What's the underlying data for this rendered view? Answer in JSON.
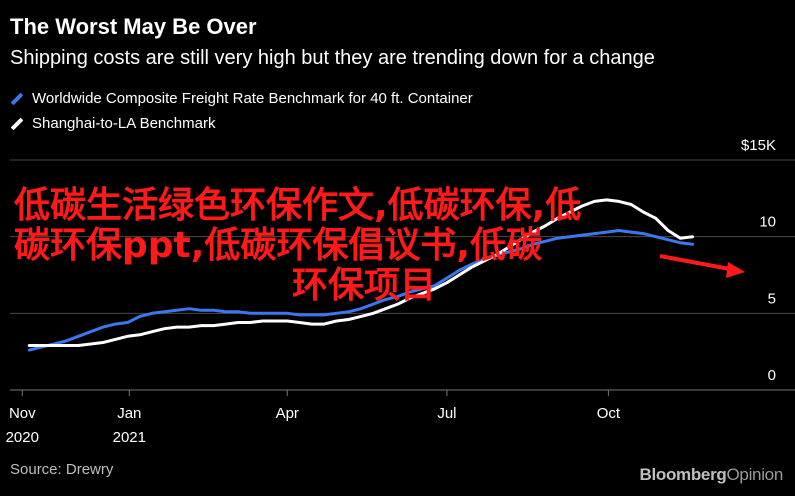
{
  "header": {
    "title": "The Worst May Be Over",
    "subtitle": "Shipping costs are still very high but they are trending down for a change"
  },
  "colors": {
    "background": "#000000",
    "series_worldwide": "#3b78f0",
    "series_shanghai": "#ffffff",
    "grid": "#555555",
    "overlay_text": "#ff1a1a"
  },
  "footer": {
    "source": "Source: Drewry",
    "brand_bold": "Bloomberg",
    "brand_light": "Opinion"
  },
  "overlay": {
    "line1": "低碳生活绿色环保作文,低碳环保,低",
    "line2": "碳环保ppt,低碳环保倡议书,低碳",
    "line3": "环保项目"
  },
  "chart_data": {
    "type": "line",
    "title": "The Worst May Be Over",
    "subtitle": "Shipping costs are still very high but they are trending down for a change",
    "x_axis_type": "weekly dates",
    "x": [
      "2020-11-05",
      "2020-11-12",
      "2020-11-19",
      "2020-11-26",
      "2020-12-03",
      "2020-12-10",
      "2020-12-17",
      "2020-12-24",
      "2020-12-31",
      "2021-01-07",
      "2021-01-14",
      "2021-01-21",
      "2021-01-28",
      "2021-02-04",
      "2021-02-11",
      "2021-02-18",
      "2021-02-25",
      "2021-03-04",
      "2021-03-11",
      "2021-03-18",
      "2021-03-25",
      "2021-04-01",
      "2021-04-08",
      "2021-04-15",
      "2021-04-22",
      "2021-04-29",
      "2021-05-06",
      "2021-05-13",
      "2021-05-20",
      "2021-05-27",
      "2021-06-03",
      "2021-06-10",
      "2021-06-17",
      "2021-06-24",
      "2021-07-01",
      "2021-07-08",
      "2021-07-15",
      "2021-07-22",
      "2021-07-29",
      "2021-08-05",
      "2021-08-12",
      "2021-08-19",
      "2021-08-26",
      "2021-09-02",
      "2021-09-09",
      "2021-09-16",
      "2021-09-23",
      "2021-09-30",
      "2021-10-07",
      "2021-10-14",
      "2021-10-21",
      "2021-10-28",
      "2021-11-04",
      "2021-11-11",
      "2021-11-18"
    ],
    "series": [
      {
        "name": "Worldwide Composite Freight Rate Benchmark for 40 ft. Container",
        "color": "#3b78f0",
        "values": [
          2.6,
          2.8,
          3.0,
          3.2,
          3.5,
          3.8,
          4.1,
          4.3,
          4.4,
          4.8,
          5.0,
          5.1,
          5.2,
          5.3,
          5.2,
          5.2,
          5.1,
          5.1,
          5.0,
          5.0,
          5.0,
          5.0,
          4.9,
          4.9,
          4.9,
          5.0,
          5.1,
          5.3,
          5.6,
          5.9,
          6.1,
          6.4,
          6.6,
          6.8,
          7.3,
          7.8,
          8.2,
          8.5,
          8.8,
          9.0,
          9.2,
          9.5,
          9.7,
          9.9,
          10.0,
          10.1,
          10.2,
          10.3,
          10.4,
          10.3,
          10.2,
          10.0,
          9.8,
          9.6,
          9.5
        ]
      },
      {
        "name": "Shanghai-to-LA Benchmark",
        "color": "#ffffff",
        "values": [
          2.9,
          2.9,
          2.9,
          2.9,
          2.9,
          3.0,
          3.1,
          3.3,
          3.5,
          3.6,
          3.8,
          4.0,
          4.1,
          4.1,
          4.2,
          4.2,
          4.3,
          4.4,
          4.4,
          4.5,
          4.5,
          4.5,
          4.4,
          4.3,
          4.3,
          4.5,
          4.6,
          4.8,
          5.0,
          5.3,
          5.6,
          6.0,
          6.3,
          6.6,
          7.0,
          7.5,
          8.0,
          8.4,
          8.8,
          9.3,
          9.8,
          10.3,
          10.7,
          11.2,
          11.6,
          12.0,
          12.3,
          12.4,
          12.3,
          12.1,
          11.6,
          11.2,
          10.4,
          9.9,
          10.0
        ]
      }
    ],
    "x_ticks": [
      {
        "date": "2020-11-01",
        "label": "Nov",
        "sublabel": "2020"
      },
      {
        "date": "2021-01-01",
        "label": "Jan",
        "sublabel": "2021"
      },
      {
        "date": "2021-04-01",
        "label": "Apr",
        "sublabel": ""
      },
      {
        "date": "2021-07-01",
        "label": "Jul",
        "sublabel": ""
      },
      {
        "date": "2021-10-01",
        "label": "Oct",
        "sublabel": ""
      }
    ],
    "y_ticks": [
      {
        "value": 0,
        "label": "0"
      },
      {
        "value": 5,
        "label": "5"
      },
      {
        "value": 10,
        "label": "10"
      },
      {
        "value": 15,
        "label": "$15K"
      }
    ],
    "x_range": [
      "2020-10-25",
      "2021-12-15"
    ],
    "ylim": [
      0,
      15
    ],
    "grid": true,
    "legend_position": "top-left"
  }
}
